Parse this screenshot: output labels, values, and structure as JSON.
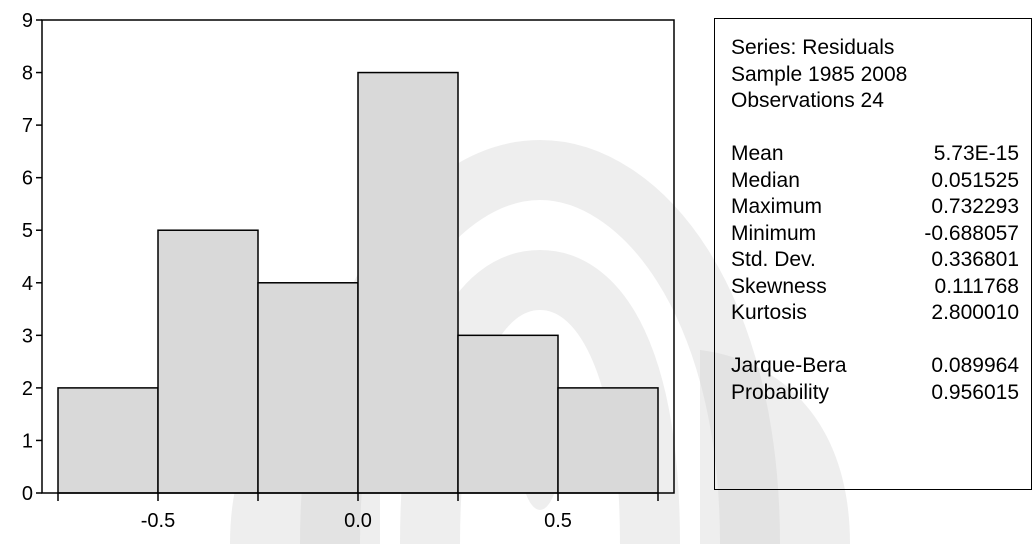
{
  "chart_data": {
    "type": "bar",
    "subtype": "histogram",
    "bins": [
      {
        "from": -0.75,
        "to": -0.5,
        "count": 2
      },
      {
        "from": -0.5,
        "to": -0.25,
        "count": 5
      },
      {
        "from": -0.25,
        "to": 0.0,
        "count": 4
      },
      {
        "from": 0.0,
        "to": 0.25,
        "count": 8
      },
      {
        "from": 0.25,
        "to": 0.5,
        "count": 3
      },
      {
        "from": 0.5,
        "to": 0.75,
        "count": 2
      }
    ],
    "xlim": [
      -0.79,
      0.79
    ],
    "ylim": [
      0,
      9
    ],
    "xticks": [
      -0.5,
      0.0,
      0.5
    ],
    "xtick_labels": [
      "-0.5",
      "0.0",
      "0.5"
    ],
    "yticks": [
      0,
      1,
      2,
      3,
      4,
      5,
      6,
      7,
      8,
      9
    ],
    "ytick_labels": [
      "0",
      "1",
      "2",
      "3",
      "4",
      "5",
      "6",
      "7",
      "8",
      "9"
    ],
    "bar_color": "#d9d9d9",
    "edge_color": "#000000",
    "grid": false,
    "xlabel": "",
    "ylabel": ""
  },
  "stats_panel": {
    "series_line": "Series: Residuals",
    "sample_line": "Sample 1985 2008",
    "obs_line": "Observations 24",
    "stats": [
      {
        "label": "Mean",
        "value": "5.73E-15"
      },
      {
        "label": "Median",
        "value": "0.051525"
      },
      {
        "label": "Maximum",
        "value": "0.732293"
      },
      {
        "label": "Minimum",
        "value": "-0.688057"
      },
      {
        "label": "Std. Dev.",
        "value": "0.336801"
      },
      {
        "label": "Skewness",
        "value": "0.111768"
      },
      {
        "label": "Kurtosis",
        "value": "2.800010"
      }
    ],
    "tests": [
      {
        "label": "Jarque-Bera",
        "value": "0.089964"
      },
      {
        "label": "Probability",
        "value": "0.956015"
      }
    ]
  },
  "watermark_color": "#cfcfcf"
}
